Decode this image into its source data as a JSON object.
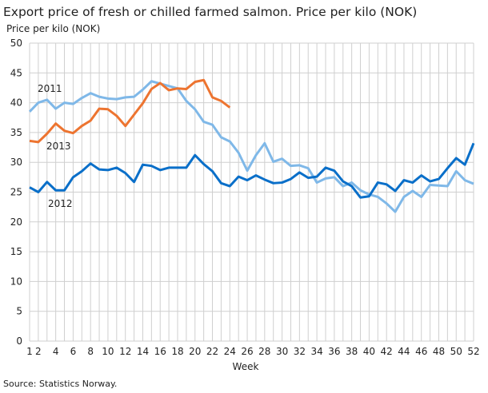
{
  "chart_data": {
    "type": "line",
    "title": "Export price of fresh or chilled farmed salmon. Price per kilo (NOK)",
    "ylabel": "Price per kilo (NOK)",
    "xlabel": "Week",
    "source": "Source: Statistics Norway.",
    "xlim": [
      1,
      52
    ],
    "ylim": [
      0,
      50
    ],
    "yticks": [
      0,
      5,
      10,
      15,
      20,
      25,
      30,
      35,
      40,
      45,
      50
    ],
    "xticks": [
      1,
      2,
      4,
      6,
      8,
      10,
      12,
      14,
      16,
      18,
      20,
      22,
      24,
      26,
      28,
      30,
      32,
      34,
      36,
      38,
      40,
      42,
      44,
      46,
      48,
      50,
      52
    ],
    "grid": true,
    "series": [
      {
        "name": "2011",
        "color": "#7fb8e8",
        "values": [
          38.5,
          40,
          40.5,
          39,
          40,
          39.8,
          40.8,
          41.6,
          41,
          40.7,
          40.6,
          40.9,
          41,
          42.2,
          43.6,
          43.2,
          42.8,
          42.4,
          40.3,
          38.9,
          36.8,
          36.3,
          34.2,
          33.5,
          31.6,
          28.6,
          31.2,
          33.2,
          30.1,
          30.6,
          29.4,
          29.5,
          29,
          26.6,
          27.3,
          27.5,
          26,
          26.6,
          25.3,
          24.6,
          24.2,
          23.1,
          21.7,
          24.2,
          25.2,
          24.2,
          26.2,
          26.1,
          26,
          28.5,
          27,
          26.4
        ]
      },
      {
        "name": "2012",
        "color": "#0a6fc9",
        "values": [
          25.8,
          25,
          26.7,
          25.3,
          25.3,
          27.5,
          28.5,
          29.8,
          28.8,
          28.7,
          29.1,
          28.2,
          26.7,
          29.6,
          29.4,
          28.7,
          29.1,
          29.1,
          29.1,
          31.2,
          29.7,
          28.5,
          26.5,
          26,
          27.6,
          27,
          27.8,
          27.1,
          26.5,
          26.6,
          27.2,
          28.3,
          27.4,
          27.6,
          29.1,
          28.6,
          26.8,
          26,
          24.1,
          24.3,
          26.6,
          26.3,
          25.2,
          27,
          26.6,
          27.8,
          26.8,
          27.2,
          29,
          30.7,
          29.6,
          33.2
        ]
      },
      {
        "name": "2013",
        "color": "#ed7430",
        "values": [
          33.6,
          33.4,
          34.8,
          36.5,
          35.3,
          34.9,
          36.1,
          37,
          39,
          38.9,
          37.8,
          36.1,
          38,
          39.9,
          42.3,
          43.3,
          42.1,
          42.4,
          42.3,
          43.5,
          43.8,
          40.9,
          40.3,
          39.2
        ]
      }
    ]
  }
}
